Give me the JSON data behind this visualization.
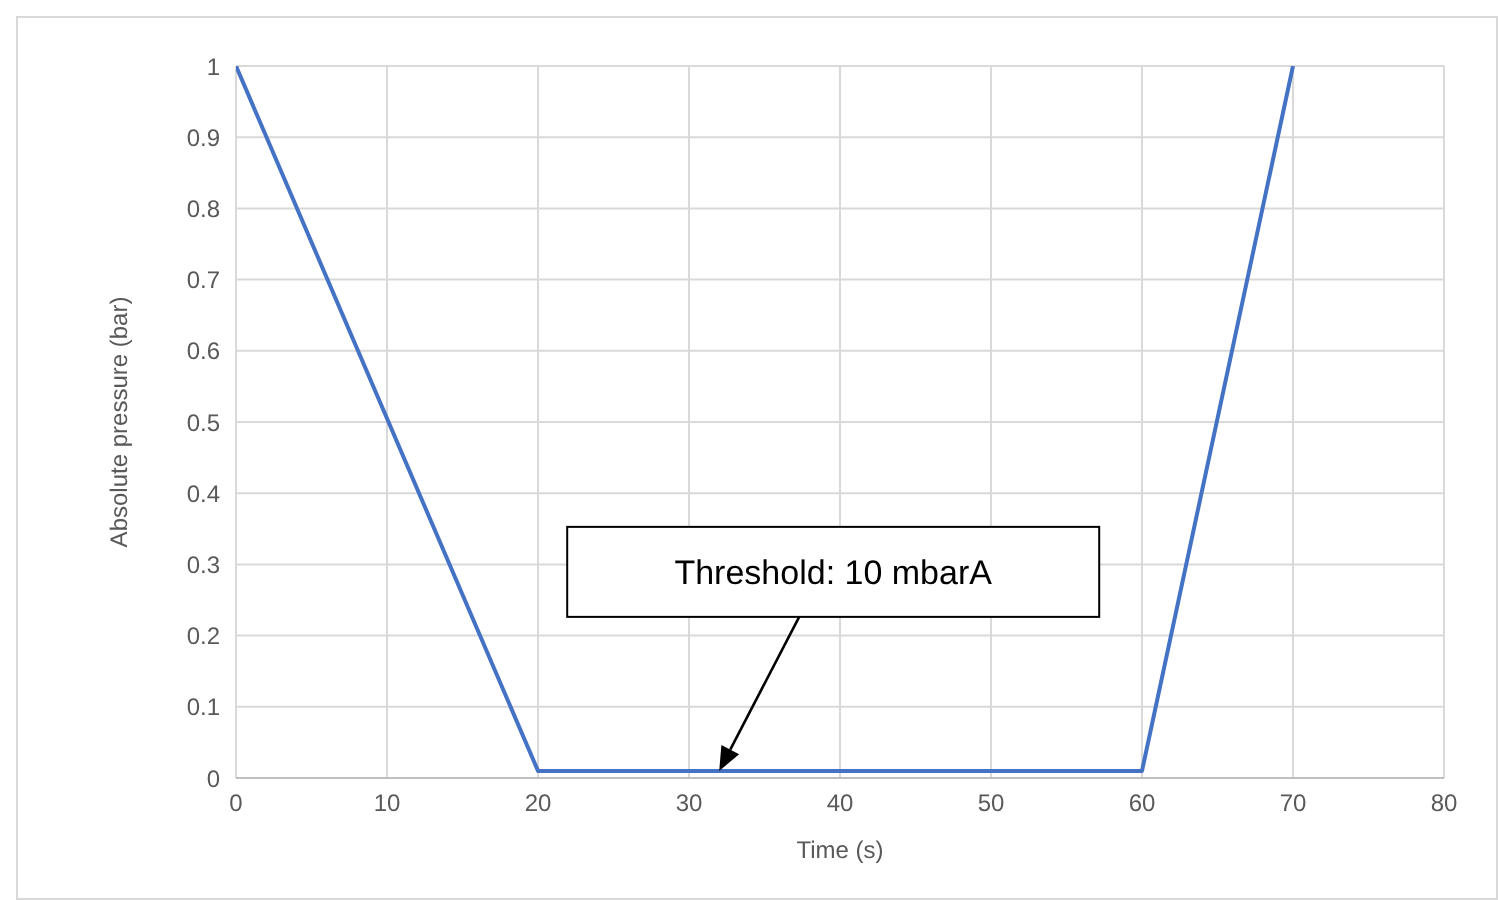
{
  "chart_data": {
    "type": "line",
    "xlabel": "Time (s)",
    "ylabel": "Absolute pressure (bar)",
    "x": [
      0,
      20,
      60,
      70
    ],
    "series": [
      {
        "color": "#4472c4",
        "values": [
          1,
          0.01,
          0.01,
          1
        ]
      }
    ],
    "xlim": [
      0,
      80
    ],
    "xticks": [
      0,
      10,
      20,
      30,
      40,
      50,
      60,
      70,
      80
    ],
    "ylim": [
      0,
      1
    ],
    "yticks": [
      0,
      0.1,
      0.2,
      0.3,
      0.4,
      0.5,
      0.6,
      0.7,
      0.8,
      0.9,
      1
    ],
    "grid": true,
    "marker": "none",
    "line_style": "solid",
    "annotations": [
      "Threshold: 10 mbarA"
    ]
  }
}
